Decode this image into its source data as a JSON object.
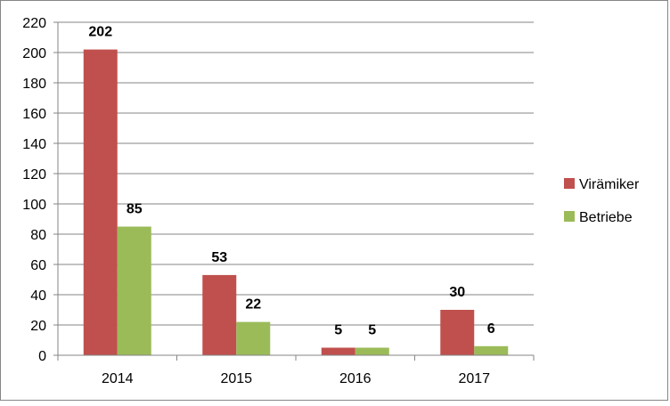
{
  "chart_data": {
    "type": "bar",
    "categories": [
      "2014",
      "2015",
      "2016",
      "2017"
    ],
    "series": [
      {
        "name": "Virämiker",
        "values": [
          202,
          53,
          5,
          30
        ],
        "color": "#c0504d"
      },
      {
        "name": "Betriebe",
        "values": [
          85,
          22,
          5,
          6
        ],
        "color": "#9bbb59"
      }
    ],
    "title": "",
    "xlabel": "",
    "ylabel": "",
    "ylim": [
      0,
      220
    ],
    "yticks": [
      "0",
      "20",
      "40",
      "60",
      "80",
      "100",
      "120",
      "140",
      "160",
      "180",
      "200",
      "220"
    ],
    "grid": true,
    "legend": "right",
    "data_labels": true
  }
}
